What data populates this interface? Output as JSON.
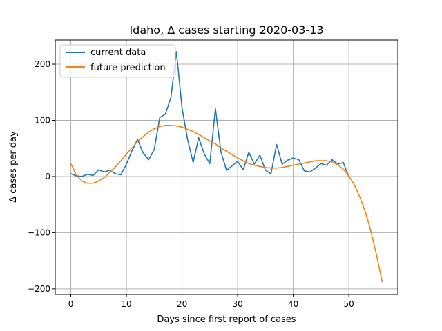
{
  "chart_data": {
    "type": "line",
    "title": "Idaho, Δ cases starting 2020-03-13",
    "xlabel": "Days since first report of cases",
    "ylabel": "Δ cases per day",
    "xlim": [
      -2.8,
      58.8
    ],
    "ylim": [
      -210,
      243
    ],
    "xticks": [
      0,
      10,
      20,
      30,
      40,
      50
    ],
    "yticks": [
      -200,
      -100,
      0,
      100,
      200
    ],
    "ytick_labels": [
      "−200",
      "−100",
      "0",
      "100",
      "200"
    ],
    "grid": true,
    "legend_position": "upper left",
    "series": [
      {
        "name": "current data",
        "color": "#1f77b4",
        "x": [
          0,
          1,
          2,
          3,
          4,
          5,
          6,
          7,
          8,
          9,
          10,
          11,
          12,
          13,
          14,
          15,
          16,
          17,
          18,
          19,
          20,
          21,
          22,
          23,
          24,
          25,
          26,
          27,
          28,
          29,
          30,
          31,
          32,
          33,
          34,
          35,
          36,
          37,
          38,
          39,
          40,
          41,
          42,
          43,
          44,
          45,
          46,
          47,
          48,
          49,
          50
        ],
        "y": [
          5,
          1,
          0,
          4,
          2,
          12,
          8,
          11,
          5,
          3,
          22,
          46,
          66,
          42,
          30,
          48,
          105,
          111,
          141,
          222,
          122,
          66,
          25,
          69,
          40,
          23,
          121,
          44,
          11,
          19,
          27,
          12,
          43,
          22,
          38,
          11,
          5,
          57,
          22,
          29,
          33,
          30,
          10,
          8,
          15,
          23,
          20,
          30,
          22,
          25,
          -1
        ]
      },
      {
        "name": "future prediction",
        "color": "#ff7f0e",
        "x": [
          0,
          1,
          2,
          3,
          4,
          5,
          6,
          7,
          8,
          9,
          10,
          11,
          12,
          13,
          14,
          15,
          16,
          17,
          18,
          19,
          20,
          21,
          22,
          23,
          24,
          25,
          26,
          27,
          28,
          29,
          30,
          31,
          32,
          33,
          34,
          35,
          36,
          37,
          38,
          39,
          40,
          41,
          42,
          43,
          44,
          45,
          46,
          47,
          48,
          49,
          50,
          51,
          52,
          53,
          54,
          55,
          56
        ],
        "y": [
          23,
          2,
          -8,
          -12,
          -12,
          -8,
          -2,
          7,
          17,
          28,
          40,
          51,
          62,
          71,
          79,
          85,
          89,
          91,
          91,
          90,
          88,
          84,
          80,
          75,
          69,
          63,
          58,
          51,
          45,
          39,
          33,
          28,
          23,
          20,
          18,
          16,
          15,
          15,
          16,
          18,
          20,
          22,
          24,
          26,
          28,
          28,
          28,
          26,
          21,
          13,
          1,
          -15,
          -37,
          -64,
          -99,
          -141,
          -188
        ]
      }
    ]
  }
}
